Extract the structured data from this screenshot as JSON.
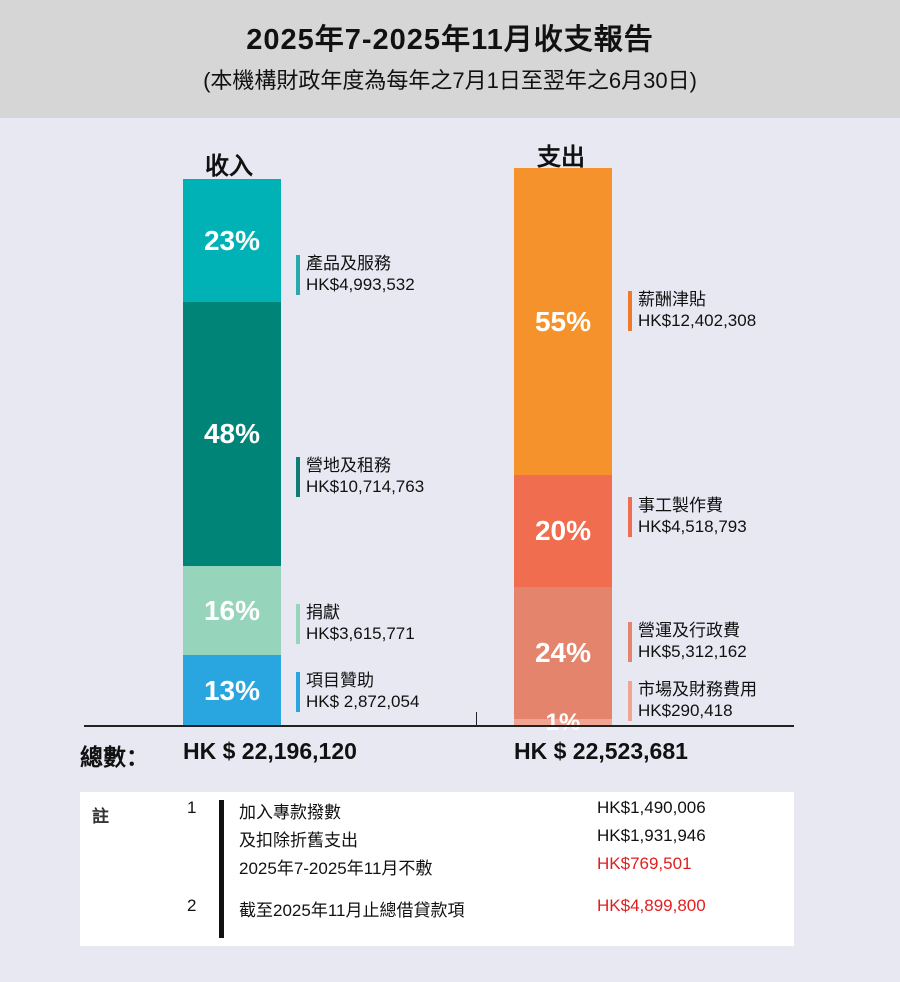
{
  "header": {
    "title": "2025年7-2025年11月收支報告",
    "subtitle": "(本機構財政年度為每年之7月1日至翌年之6月30日)"
  },
  "chart_data": [
    {
      "type": "bar",
      "title": "收入",
      "series": [
        {
          "name": "產品及服務",
          "pct_label": "23%",
          "amount": "HK$4,993,532",
          "value": 4993532,
          "color": "#00b2b5"
        },
        {
          "name": "營地及租務",
          "pct_label": "48%",
          "amount": "HK$10,714,763",
          "value": 10714763,
          "color": "#008478"
        },
        {
          "name": "捐獻",
          "pct_label": "16%",
          "amount": "HK$3,615,771",
          "value": 3615771,
          "color": "#96d4bb"
        },
        {
          "name": "項目贊助",
          "pct_label": "13%",
          "amount": "HK$ 2,872,054",
          "value": 2872054,
          "color": "#29a5df"
        }
      ],
      "total_label": "HK $  22,196,120"
    },
    {
      "type": "bar",
      "title": "支出",
      "series": [
        {
          "name": "薪酬津貼",
          "pct_label": "55%",
          "amount": "HK$12,402,308",
          "value": 12402308,
          "color": "#f6922b"
        },
        {
          "name": "事工製作費",
          "pct_label": "20%",
          "amount": "HK$4,518,793",
          "value": 4518793,
          "color": "#f06e4f"
        },
        {
          "name": "營運及行政費",
          "pct_label": "24%",
          "amount": "HK$5,312,162",
          "value": 5312162,
          "color": "#e5846d"
        },
        {
          "name": "市場及財務費用",
          "pct_label": "1%",
          "amount": "HK$290,418",
          "value": 290418,
          "color": "#f0a491"
        }
      ],
      "total_label": "HK $ 22,523,681"
    }
  ],
  "totals": {
    "label": "總數："
  },
  "notes": {
    "label": "註",
    "items": [
      {
        "num": "1",
        "text": "加入專款撥數",
        "amount": "HK$1,490,006",
        "highlight": false
      },
      {
        "num": "",
        "text": "及扣除折舊支出",
        "amount": "HK$1,931,946",
        "highlight": false
      },
      {
        "num": "",
        "text": "2025年7-2025年11月不敷",
        "amount": "HK$769,501",
        "highlight": true
      },
      {
        "num": "2",
        "text": "截至2025年11月止總借貸款項",
        "amount": "HK$4,899,800",
        "highlight": true
      }
    ]
  }
}
